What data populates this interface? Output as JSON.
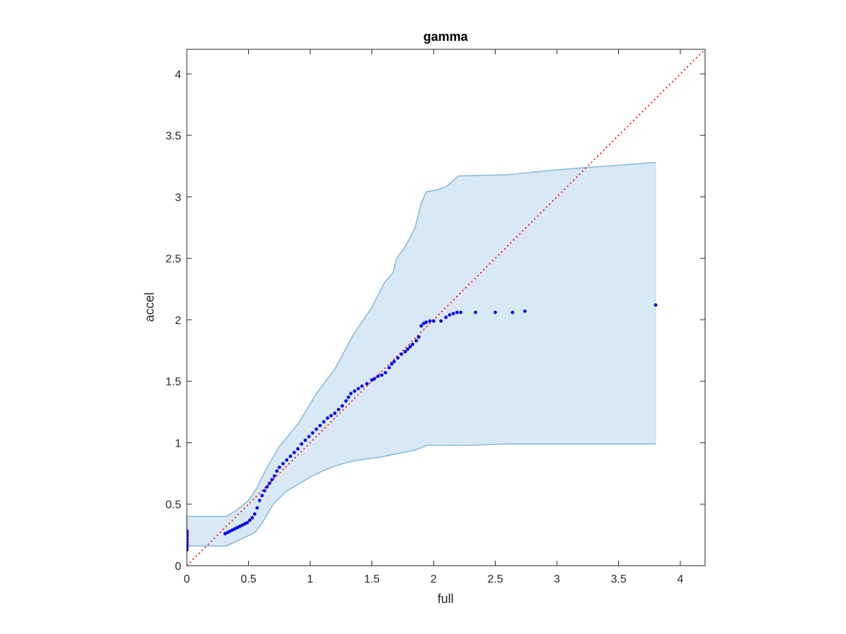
{
  "colors": {
    "band_fill": "#d9e8f5",
    "band_edge": "#88bbdd",
    "points": "#0000ee",
    "reference_line": "#ff0000",
    "axes": "#262626"
  },
  "chart_data": {
    "type": "scatter",
    "title": "gamma",
    "xlabel": "full",
    "ylabel": "accel",
    "xlim": [
      0,
      4.2
    ],
    "ylim": [
      0,
      4.2
    ],
    "xticks": [
      0,
      0.5,
      1,
      1.5,
      2,
      2.5,
      3,
      3.5,
      4
    ],
    "yticks": [
      0,
      0.5,
      1,
      1.5,
      2,
      2.5,
      3,
      3.5,
      4
    ],
    "xtick_labels": [
      "0",
      "0.5",
      "1",
      "1.5",
      "2",
      "2.5",
      "3",
      "3.5",
      "4"
    ],
    "ytick_labels": [
      "0",
      "0.5",
      "1",
      "1.5",
      "2",
      "2.5",
      "3",
      "3.5",
      "4"
    ],
    "grid": false,
    "box": true,
    "series": [
      {
        "kind": "confidence_band",
        "upper": [
          [
            0,
            0.4
          ],
          [
            0.32,
            0.4
          ],
          [
            0.4,
            0.45
          ],
          [
            0.5,
            0.53
          ],
          [
            0.56,
            0.62
          ],
          [
            0.6,
            0.7
          ],
          [
            0.65,
            0.8
          ],
          [
            0.75,
            0.97
          ],
          [
            0.9,
            1.15
          ],
          [
            1.05,
            1.4
          ],
          [
            1.2,
            1.6
          ],
          [
            1.35,
            1.88
          ],
          [
            1.5,
            2.1
          ],
          [
            1.6,
            2.3
          ],
          [
            1.67,
            2.38
          ],
          [
            1.7,
            2.5
          ],
          [
            1.76,
            2.58
          ],
          [
            1.8,
            2.65
          ],
          [
            1.85,
            2.75
          ],
          [
            1.9,
            2.95
          ],
          [
            1.94,
            3.04
          ],
          [
            2.0,
            3.05
          ],
          [
            2.1,
            3.08
          ],
          [
            2.2,
            3.17
          ],
          [
            2.6,
            3.18
          ],
          [
            3.0,
            3.22
          ],
          [
            3.8,
            3.28
          ]
        ],
        "lower": [
          [
            0,
            0.16
          ],
          [
            0.32,
            0.16
          ],
          [
            0.45,
            0.22
          ],
          [
            0.55,
            0.27
          ],
          [
            0.6,
            0.33
          ],
          [
            0.7,
            0.5
          ],
          [
            0.8,
            0.6
          ],
          [
            0.9,
            0.66
          ],
          [
            1.0,
            0.72
          ],
          [
            1.1,
            0.77
          ],
          [
            1.2,
            0.81
          ],
          [
            1.3,
            0.84
          ],
          [
            1.4,
            0.86
          ],
          [
            1.55,
            0.88
          ],
          [
            1.7,
            0.91
          ],
          [
            1.85,
            0.94
          ],
          [
            1.95,
            0.98
          ],
          [
            2.3,
            0.98
          ],
          [
            2.6,
            0.99
          ],
          [
            3.8,
            0.99
          ]
        ]
      },
      {
        "kind": "reference_line",
        "x": [
          0,
          4.2
        ],
        "y": [
          0,
          4.2
        ]
      },
      {
        "kind": "points",
        "x0_cluster": [
          0.13,
          0.15,
          0.17,
          0.19,
          0.21,
          0.22,
          0.24,
          0.25,
          0.26,
          0.28
        ],
        "x": [
          0.31,
          0.33,
          0.35,
          0.37,
          0.39,
          0.41,
          0.43,
          0.45,
          0.47,
          0.49,
          0.51,
          0.53,
          0.55,
          0.57,
          0.59,
          0.61,
          0.63,
          0.65,
          0.67,
          0.69,
          0.71,
          0.73,
          0.75,
          0.78,
          0.81,
          0.84,
          0.87,
          0.9,
          0.93,
          0.96,
          0.99,
          1.02,
          1.05,
          1.08,
          1.11,
          1.14,
          1.17,
          1.2,
          1.23,
          1.26,
          1.29,
          1.31,
          1.33,
          1.36,
          1.39,
          1.42,
          1.46,
          1.5,
          1.52,
          1.55,
          1.58,
          1.61,
          1.64,
          1.66,
          1.68,
          1.71,
          1.74,
          1.77,
          1.79,
          1.81,
          1.83,
          1.86,
          1.88,
          1.9,
          1.92,
          1.94,
          1.97,
          2.0,
          2.06,
          2.1,
          2.13,
          2.16,
          2.19,
          2.22,
          2.34,
          2.5,
          2.64,
          2.74,
          3.8
        ],
        "y": [
          0.26,
          0.27,
          0.28,
          0.29,
          0.3,
          0.31,
          0.32,
          0.33,
          0.34,
          0.35,
          0.37,
          0.39,
          0.42,
          0.47,
          0.53,
          0.57,
          0.61,
          0.64,
          0.67,
          0.7,
          0.73,
          0.77,
          0.8,
          0.83,
          0.86,
          0.89,
          0.92,
          0.95,
          0.99,
          1.02,
          1.05,
          1.08,
          1.11,
          1.14,
          1.17,
          1.2,
          1.22,
          1.24,
          1.27,
          1.3,
          1.34,
          1.37,
          1.4,
          1.42,
          1.44,
          1.46,
          1.48,
          1.51,
          1.52,
          1.54,
          1.55,
          1.57,
          1.61,
          1.64,
          1.66,
          1.69,
          1.72,
          1.74,
          1.76,
          1.78,
          1.8,
          1.83,
          1.86,
          1.95,
          1.97,
          1.98,
          1.99,
          1.99,
          1.99,
          2.02,
          2.04,
          2.05,
          2.06,
          2.06,
          2.06,
          2.06,
          2.06,
          2.07,
          2.12
        ]
      }
    ]
  }
}
